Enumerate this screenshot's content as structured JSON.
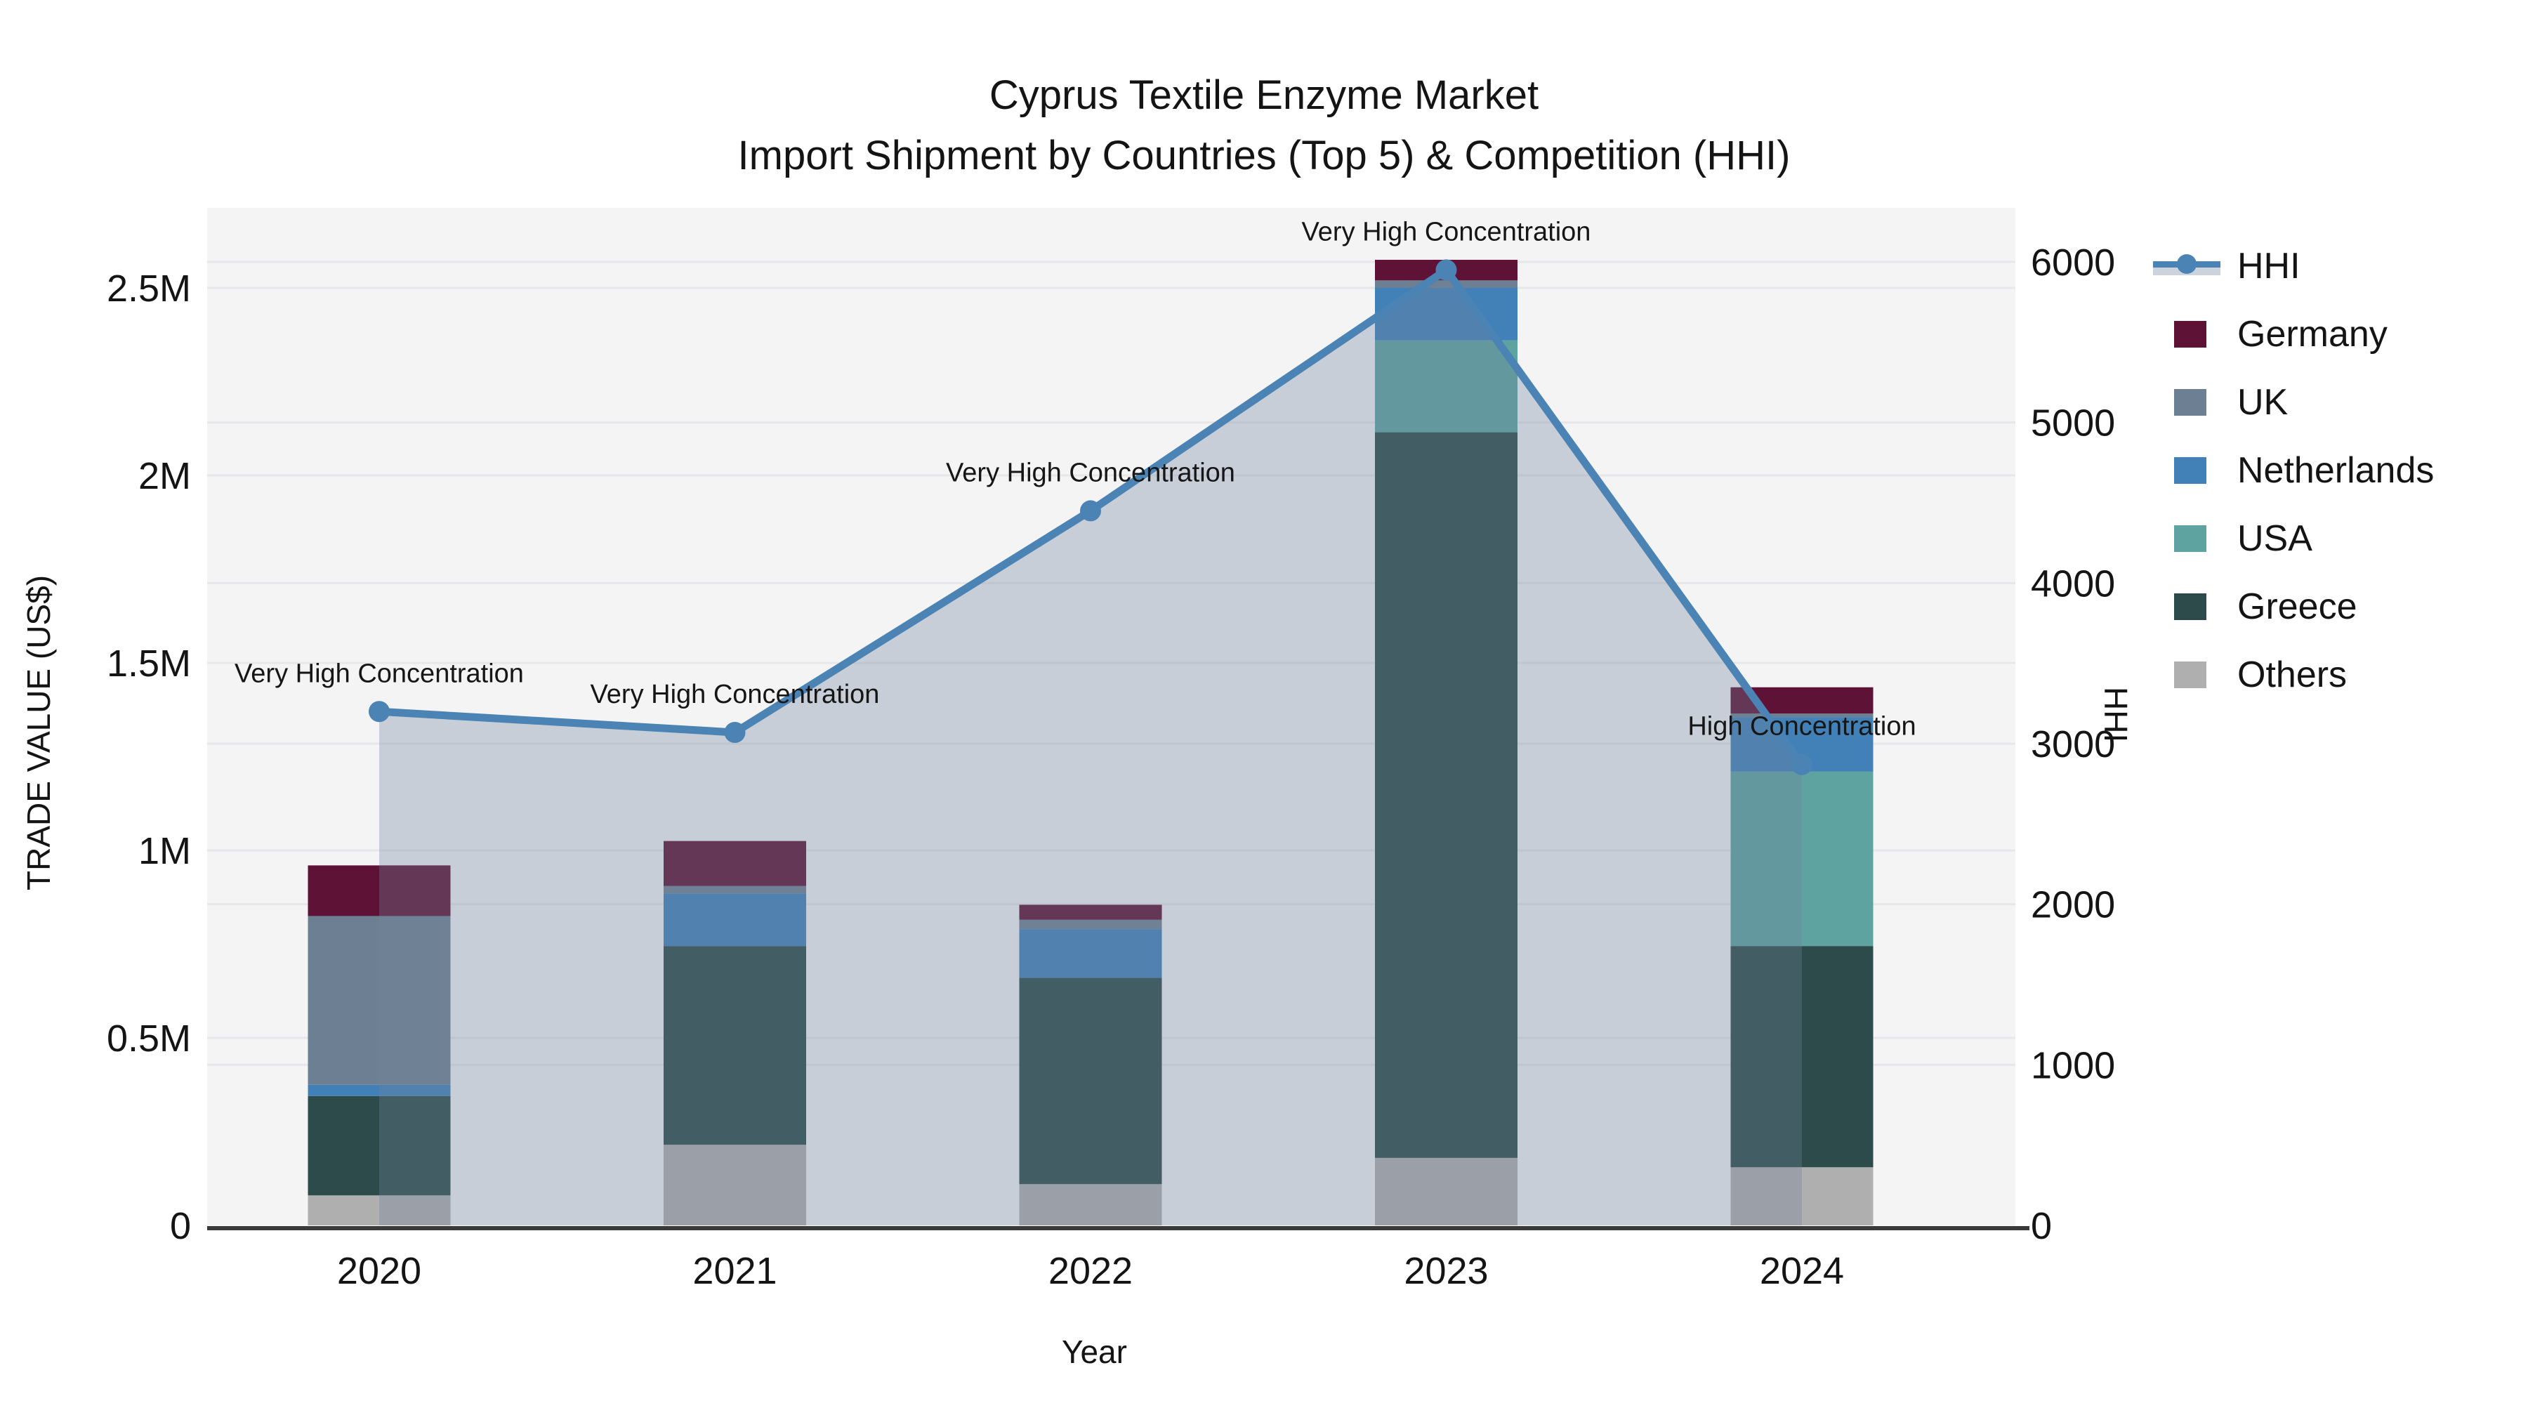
{
  "title": {
    "line1": "Cyprus Textile Enzyme Market",
    "line2": "Import Shipment by Countries (Top 5) & Competition (HHI)"
  },
  "axes": {
    "left": {
      "label": "TRADE VALUE (US$)",
      "ticks": [
        "0",
        "0.5M",
        "1M",
        "1.5M",
        "2M",
        "2.5M"
      ],
      "tick_values": [
        0,
        500000,
        1000000,
        1500000,
        2000000,
        2500000
      ],
      "max": 2500000
    },
    "right": {
      "label": "HHI",
      "ticks": [
        "0",
        "1000",
        "2000",
        "3000",
        "4000",
        "5000",
        "6000"
      ],
      "tick_values": [
        0,
        1000,
        2000,
        3000,
        4000,
        5000,
        6000
      ],
      "max": 6000
    },
    "x": {
      "label": "Year",
      "categories": [
        "2020",
        "2021",
        "2022",
        "2023",
        "2024"
      ]
    }
  },
  "legend": [
    {
      "name": "HHI",
      "type": "line",
      "color": "#4a83b4",
      "band": "#cdd3dc"
    },
    {
      "name": "Germany",
      "type": "box",
      "color": "#5e1336"
    },
    {
      "name": "UK",
      "type": "box",
      "color": "#6d8093"
    },
    {
      "name": "Netherlands",
      "type": "box",
      "color": "#4281b8"
    },
    {
      "name": "USA",
      "type": "box",
      "color": "#5fa3a1"
    },
    {
      "name": "Greece",
      "type": "box",
      "color": "#2d4b4b"
    },
    {
      "name": "Others",
      "type": "box",
      "color": "#b0afaf"
    }
  ],
  "chart_data": {
    "type": "combo-stacked-bar-line",
    "categories": [
      "2020",
      "2021",
      "2022",
      "2023",
      "2024"
    ],
    "stack_order_bottom_to_top": [
      "Others",
      "Greece",
      "USA",
      "Netherlands",
      "UK",
      "Germany"
    ],
    "series": [
      {
        "name": "Others",
        "color": "#b0afaf",
        "values": [
          80000,
          215000,
          110000,
          180000,
          155000
        ]
      },
      {
        "name": "Greece",
        "color": "#2d4b4b",
        "values": [
          265000,
          530000,
          550000,
          1935000,
          590000
        ]
      },
      {
        "name": "USA",
        "color": "#5fa3a1",
        "values": [
          0,
          0,
          0,
          245000,
          465000
        ]
      },
      {
        "name": "Netherlands",
        "color": "#4281b8",
        "values": [
          30000,
          140000,
          130000,
          140000,
          145000
        ]
      },
      {
        "name": "UK",
        "color": "#6d8093",
        "values": [
          450000,
          20000,
          25000,
          20000,
          10000
        ]
      },
      {
        "name": "Germany",
        "color": "#5e1336",
        "values": [
          135000,
          120000,
          40000,
          55000,
          70000
        ]
      }
    ],
    "bar_totals": [
      960000,
      1025000,
      855000,
      2575000,
      1435000
    ],
    "hhi": {
      "name": "HHI",
      "color": "#4a83b4",
      "fill_rgba": "rgba(112,132,156,0.33)",
      "values": [
        3200,
        3070,
        4450,
        5950,
        2870
      ]
    },
    "annotations": [
      {
        "x": "2020",
        "text": "Very High Concentration"
      },
      {
        "x": "2021",
        "text": "Very High Concentration"
      },
      {
        "x": "2022",
        "text": "Very High Concentration"
      },
      {
        "x": "2023",
        "text": "Very High Concentration"
      },
      {
        "x": "2024",
        "text": "High Concentration"
      }
    ],
    "xlabel": "Year",
    "ylabel_left": "TRADE VALUE (US$)",
    "ylabel_right": "HHI",
    "ylim_left": [
      0,
      2500000
    ],
    "ylim_right": [
      0,
      6000
    ],
    "plot_bg": "#f4f4f5",
    "grid_color": "#e7e7ea",
    "grid": true,
    "legend_position": "right"
  }
}
